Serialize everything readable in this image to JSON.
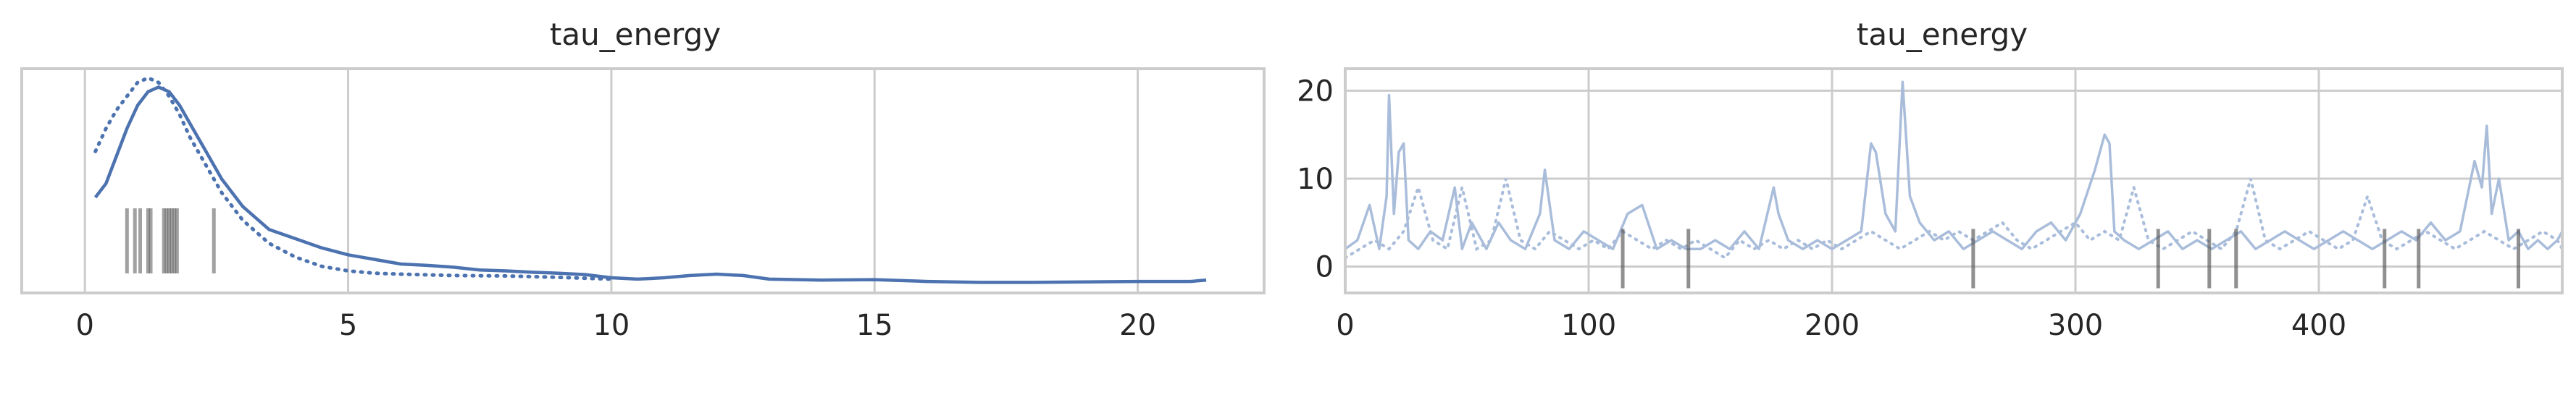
{
  "chart_data": [
    {
      "type": "line",
      "panel": "density",
      "title": "tau_energy",
      "xlabel": "",
      "ylabel": "",
      "xlim": [
        -1.2,
        22.4
      ],
      "ylim": [
        -0.008,
        0.48
      ],
      "xticks": [
        0,
        5,
        10,
        15,
        20
      ],
      "yticks": [],
      "grid": true,
      "legend": "none",
      "series": [
        {
          "style": "solid",
          "x": [
            0.2,
            0.4,
            0.6,
            0.8,
            1.0,
            1.2,
            1.4,
            1.6,
            1.8,
            2.0,
            2.3,
            2.6,
            3.0,
            3.5,
            4.0,
            4.5,
            5.0,
            5.5,
            6.0,
            6.5,
            7.0,
            7.5,
            8.0,
            8.5,
            9.0,
            9.5,
            10.0,
            10.5,
            11.0,
            11.5,
            12.0,
            12.5,
            13.0,
            14.0,
            15.0,
            16.0,
            17.0,
            18.0,
            19.0,
            20.0,
            21.0,
            21.3
          ],
          "y": [
            0.2,
            0.23,
            0.29,
            0.35,
            0.4,
            0.43,
            0.44,
            0.43,
            0.4,
            0.36,
            0.3,
            0.24,
            0.18,
            0.13,
            0.11,
            0.09,
            0.075,
            0.065,
            0.055,
            0.052,
            0.048,
            0.042,
            0.04,
            0.037,
            0.035,
            0.032,
            0.025,
            0.022,
            0.025,
            0.03,
            0.033,
            0.03,
            0.022,
            0.02,
            0.021,
            0.017,
            0.015,
            0.015,
            0.016,
            0.017,
            0.017,
            0.02
          ]
        },
        {
          "style": "dotted",
          "x": [
            0.2,
            0.4,
            0.6,
            0.8,
            1.0,
            1.2,
            1.4,
            1.6,
            1.8,
            2.0,
            2.3,
            2.6,
            3.0,
            3.5,
            4.0,
            4.5,
            5.0,
            5.5,
            6.0,
            7.0,
            8.0,
            9.0,
            10.0
          ],
          "y": [
            0.3,
            0.35,
            0.39,
            0.42,
            0.45,
            0.46,
            0.45,
            0.42,
            0.38,
            0.33,
            0.27,
            0.21,
            0.15,
            0.1,
            0.07,
            0.05,
            0.04,
            0.035,
            0.033,
            0.03,
            0.029,
            0.026,
            0.022
          ]
        }
      ],
      "rug": [
        0.8,
        0.95,
        1.05,
        1.2,
        1.25,
        1.5,
        1.55,
        1.6,
        1.65,
        1.7,
        1.75,
        2.45
      ]
    },
    {
      "type": "line",
      "panel": "trace",
      "title": "tau_energy",
      "xlabel": "",
      "ylabel": "",
      "xlim": [
        0,
        500
      ],
      "ylim": [
        -3,
        22.5
      ],
      "xticks": [
        0,
        100,
        200,
        300,
        400
      ],
      "yticks": [
        0,
        10,
        20
      ],
      "grid": true,
      "legend": "none",
      "series": [
        {
          "style": "solid",
          "x": [
            0,
            5,
            10,
            14,
            17,
            18,
            20,
            22,
            24,
            26,
            30,
            35,
            40,
            45,
            48,
            52,
            58,
            63,
            68,
            74,
            80,
            82,
            86,
            92,
            98,
            104,
            110,
            116,
            122,
            128,
            134,
            140,
            146,
            152,
            158,
            164,
            170,
            176,
            178,
            182,
            188,
            194,
            200,
            206,
            212,
            216,
            218,
            222,
            226,
            229,
            232,
            236,
            242,
            248,
            254,
            260,
            266,
            272,
            278,
            284,
            290,
            296,
            302,
            308,
            312,
            314,
            316,
            320,
            326,
            332,
            338,
            344,
            350,
            356,
            362,
            368,
            374,
            380,
            386,
            392,
            398,
            404,
            410,
            416,
            422,
            428,
            434,
            440,
            446,
            452,
            458,
            464,
            467,
            469,
            471,
            474,
            478,
            482,
            486,
            490,
            494,
            498,
            500
          ],
          "y": [
            2,
            3,
            7,
            2,
            8,
            19.5,
            6,
            13,
            14,
            3,
            2,
            4,
            3,
            9,
            2,
            5,
            2,
            5,
            3,
            2,
            6,
            11,
            3,
            2,
            4,
            3,
            2,
            6,
            7,
            2,
            3,
            2,
            2,
            3,
            2,
            4,
            2,
            9,
            6,
            3,
            2,
            3,
            2,
            3,
            4,
            14,
            13,
            6,
            4,
            21,
            8,
            5,
            3,
            4,
            2,
            3,
            4,
            3,
            2,
            4,
            5,
            3,
            6,
            11,
            15,
            14,
            4,
            3,
            2,
            3,
            4,
            2,
            3,
            2,
            3,
            4,
            2,
            3,
            4,
            3,
            2,
            3,
            4,
            3,
            2,
            3,
            4,
            3,
            5,
            3,
            4,
            12,
            9,
            16,
            6,
            10,
            3,
            4,
            2,
            3,
            2,
            3,
            4
          ]
        },
        {
          "style": "dotted",
          "x": [
            0,
            6,
            12,
            18,
            24,
            30,
            36,
            42,
            48,
            54,
            60,
            66,
            72,
            78,
            84,
            90,
            96,
            102,
            108,
            114,
            120,
            126,
            132,
            138,
            144,
            150,
            156,
            162,
            168,
            174,
            180,
            186,
            192,
            198,
            204,
            210,
            216,
            222,
            228,
            234,
            240,
            246,
            252,
            258,
            264,
            270,
            276,
            282,
            288,
            294,
            300,
            306,
            312,
            318,
            324,
            330,
            336,
            342,
            348,
            354,
            360,
            366,
            372,
            378,
            384,
            390,
            396,
            402,
            408,
            414,
            420,
            426,
            432,
            438,
            444,
            450,
            456,
            462,
            468,
            474,
            480,
            486,
            492,
            498,
            500
          ],
          "y": [
            1,
            2,
            3,
            2,
            4,
            9,
            3,
            2,
            9,
            2,
            3,
            10,
            3,
            2,
            4,
            3,
            2,
            3,
            2,
            4,
            3,
            2,
            3,
            2,
            3,
            2,
            1,
            3,
            2,
            3,
            2,
            3,
            2,
            3,
            2,
            3,
            4,
            3,
            2,
            3,
            4,
            3,
            4,
            3,
            4,
            5,
            3,
            2,
            3,
            4,
            5,
            3,
            4,
            3,
            9,
            3,
            2,
            3,
            4,
            3,
            2,
            4,
            10,
            3,
            2,
            3,
            4,
            3,
            2,
            3,
            8,
            3,
            2,
            3,
            4,
            3,
            2,
            3,
            4,
            3,
            2,
            3,
            4,
            3,
            2
          ]
        }
      ],
      "divergences": [
        114,
        141,
        258,
        334,
        355,
        366,
        427,
        441,
        482
      ]
    }
  ]
}
